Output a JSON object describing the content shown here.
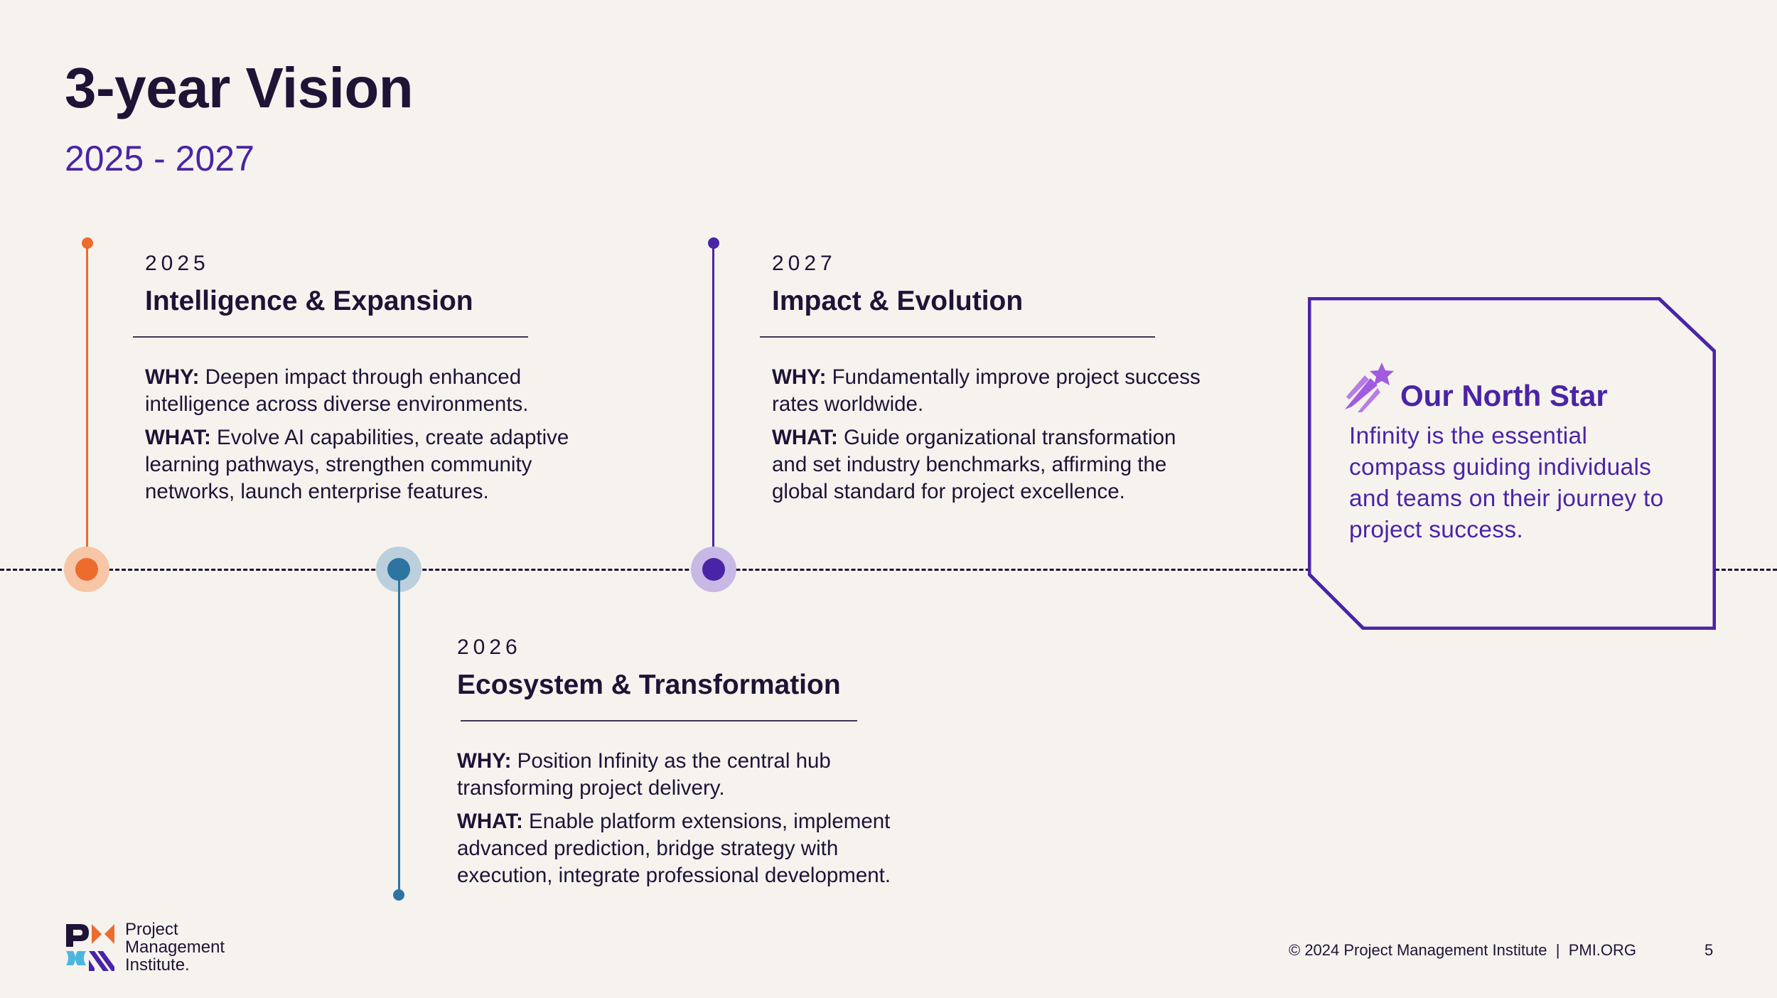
{
  "slide": {
    "title": "3-year Vision",
    "subtitle": "2025 - 2027"
  },
  "milestones": [
    {
      "year": "2025",
      "title": "Intelligence & Expansion",
      "why_label": "WHY:",
      "why": " Deepen impact through enhanced intelligence across diverse environments.",
      "what_label": "WHAT:",
      "what": " Evolve AI capabilities, create adaptive learning pathways, strengthen community networks, launch enterprise features.",
      "color": "#ec6b2d",
      "halo": "#f6c6a7"
    },
    {
      "year": "2026",
      "title": "Ecosystem & Transformation",
      "why_label": "WHY:",
      "why": " Position Infinity as the central hub transforming project delivery.",
      "what_label": "WHAT:",
      "what": " Enable platform extensions, implement advanced prediction, bridge strategy with execution, integrate professional development.",
      "color": "#2e74a0",
      "halo": "#bccfdc"
    },
    {
      "year": "2027",
      "title": "Impact & Evolution",
      "why_label": "WHY:",
      "why": " Fundamentally improve project success rates worldwide.",
      "what_label": "WHAT:",
      "what": " Guide organizational transformation and set industry benchmarks, affirming the global standard for project excellence.",
      "color": "#4a24a6",
      "halo": "#c7b8e6"
    }
  ],
  "north_star": {
    "heading": "Our North Star",
    "text": "Infinity is the essential compass guiding individuals and teams on their journey to project success.",
    "icon": "shooting-star-icon",
    "color": "#4a24a6",
    "icon_color": "#a25be0"
  },
  "footer": {
    "copyright": "© 2024 Project Management Institute  |  PMI.ORG",
    "page_number": "5",
    "logo_lines": [
      "Project",
      "Management",
      "Institute."
    ]
  }
}
